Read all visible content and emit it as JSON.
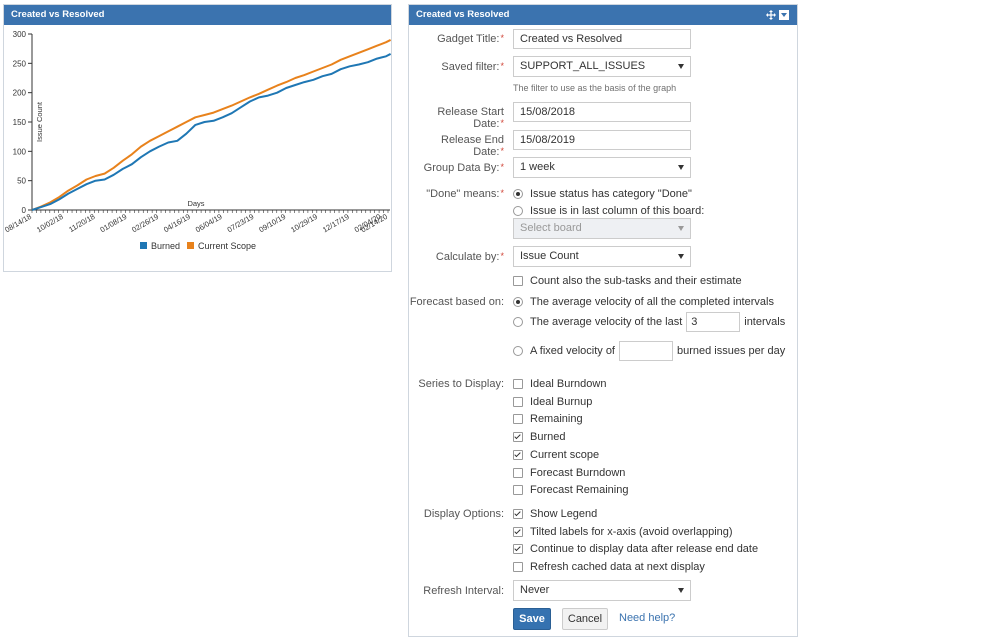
{
  "chart_panel": {
    "title": "Created vs Resolved"
  },
  "chart_data": {
    "type": "line",
    "title": "",
    "xlabel": "Days",
    "ylabel": "Issue Count",
    "ylim": [
      0,
      300
    ],
    "yticks": [
      0,
      50,
      100,
      150,
      200,
      250,
      300
    ],
    "xtick_labels": [
      "08/14/18",
      "10/02/18",
      "11/20/18",
      "01/08/19",
      "02/26/19",
      "04/16/19",
      "06/04/19",
      "07/23/19",
      "09/10/19",
      "10/29/19",
      "12/17/19",
      "02/04/20",
      "02/14/20"
    ],
    "xtick_dates": [
      "2018-08-14",
      "2018-10-02",
      "2018-11-20",
      "2019-01-08",
      "2019-02-26",
      "2019-04-16",
      "2019-06-04",
      "2019-07-23",
      "2019-09-10",
      "2019-10-29",
      "2019-12-17",
      "2020-02-04",
      "2020-02-14"
    ],
    "x_dates": [
      "2018-08-14",
      "2018-08-28",
      "2018-09-11",
      "2018-09-25",
      "2018-10-09",
      "2018-10-23",
      "2018-11-06",
      "2018-11-20",
      "2018-12-04",
      "2018-12-18",
      "2019-01-01",
      "2019-01-15",
      "2019-01-29",
      "2019-02-12",
      "2019-02-26",
      "2019-03-12",
      "2019-03-26",
      "2019-04-09",
      "2019-04-23",
      "2019-05-07",
      "2019-05-21",
      "2019-06-04",
      "2019-06-18",
      "2019-07-02",
      "2019-07-16",
      "2019-07-30",
      "2019-08-13",
      "2019-08-27",
      "2019-09-10",
      "2019-09-24",
      "2019-10-08",
      "2019-10-22",
      "2019-11-05",
      "2019-11-19",
      "2019-12-03",
      "2019-12-17",
      "2019-12-31",
      "2020-01-14",
      "2020-01-28",
      "2020-02-11",
      "2020-02-18"
    ],
    "grid": false,
    "legend": "bottom",
    "series": [
      {
        "name": "Burned",
        "color": "#1f77b4",
        "values": [
          0,
          5,
          10,
          18,
          28,
          36,
          44,
          50,
          52,
          60,
          70,
          78,
          90,
          100,
          108,
          115,
          118,
          130,
          145,
          150,
          152,
          158,
          165,
          175,
          185,
          192,
          195,
          200,
          208,
          213,
          218,
          222,
          228,
          232,
          240,
          245,
          248,
          252,
          258,
          262,
          266
        ]
      },
      {
        "name": "Current Scope",
        "color": "#e8821c",
        "values": [
          0,
          6,
          13,
          22,
          33,
          42,
          52,
          58,
          62,
          72,
          84,
          95,
          108,
          118,
          126,
          134,
          142,
          150,
          158,
          162,
          166,
          172,
          178,
          185,
          192,
          198,
          205,
          212,
          218,
          225,
          230,
          236,
          242,
          248,
          256,
          262,
          268,
          274,
          280,
          286,
          290
        ]
      }
    ]
  },
  "config_panel": {
    "title": "Created vs Resolved",
    "gadget_title": {
      "label": "Gadget Title:",
      "value": "Created vs Resolved"
    },
    "saved_filter": {
      "label": "Saved filter:",
      "value": "SUPPORT_ALL_ISSUES",
      "hint": "The filter to use as the basis of the graph"
    },
    "release_start": {
      "label": "Release Start Date:",
      "value": "15/08/2018"
    },
    "release_end": {
      "label": "Release End Date:",
      "value": "15/08/2019"
    },
    "group_by": {
      "label": "Group Data By:",
      "value": "1 week"
    },
    "done_means": {
      "label": "\"Done\" means:",
      "option1": "Issue status has category \"Done\"",
      "option2": "Issue is in last column of this board:",
      "board_placeholder": "Select board"
    },
    "calculate_by": {
      "label": "Calculate by:",
      "value": "Issue Count",
      "subtasks": "Count also the sub-tasks and their estimate"
    },
    "forecast": {
      "label": "Forecast based on:",
      "option1": "The average velocity of all the completed intervals",
      "option2_pre": "The average velocity of the last",
      "option2_value": "3",
      "option2_post": "intervals",
      "option3_pre": "A fixed velocity of",
      "option3_post": "burned issues per day"
    },
    "series": {
      "label": "Series to Display:",
      "items": [
        "Ideal Burndown",
        "Ideal Burnup",
        "Remaining",
        "Burned",
        "Current scope",
        "Forecast Burndown",
        "Forecast Remaining"
      ],
      "checked": [
        false,
        false,
        false,
        true,
        true,
        false,
        false
      ]
    },
    "display": {
      "label": "Display Options:",
      "items": [
        "Show Legend",
        "Tilted labels for x-axis (avoid overlapping)",
        "Continue to display data after release end date",
        "Refresh cached data at next display"
      ],
      "checked": [
        true,
        true,
        true,
        false
      ]
    },
    "refresh": {
      "label": "Refresh Interval:",
      "value": "Never"
    },
    "buttons": {
      "save": "Save",
      "cancel": "Cancel",
      "help": "Need help?"
    }
  }
}
